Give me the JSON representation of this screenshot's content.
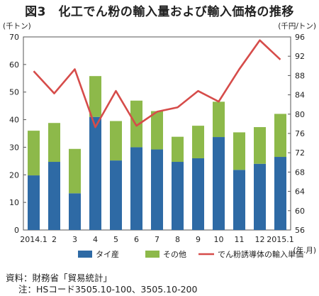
{
  "title": "図3　化工でん粉の輸入量および輸入価格の推移",
  "notes": {
    "source": "資料：財務省「貿易統計」",
    "note": "注：HSコード3505.10-100、3505.10-200"
  },
  "chart_data": {
    "type": "bar",
    "stacked": true,
    "categories": [
      "2014.1",
      "2",
      "3",
      "4",
      "5",
      "6",
      "7",
      "8",
      "9",
      "10",
      "11",
      "12",
      "2015.1"
    ],
    "xlabel": "(年.月)",
    "ylabel_left": "(千トン)",
    "ylabel_right": "(千円/トン)",
    "ylim_left": [
      0,
      70
    ],
    "yticks_left": [
      0,
      10,
      20,
      30,
      40,
      50,
      60,
      70
    ],
    "ylim_right": [
      56,
      96
    ],
    "yticks_right": [
      56,
      60,
      64,
      68,
      72,
      76,
      80,
      84,
      88,
      92,
      96
    ],
    "grid": false,
    "legend_position": "bottom",
    "series": [
      {
        "name": "タイ産",
        "color": "#2e6aa5",
        "axis": "left",
        "values": [
          19.8,
          24.7,
          13.3,
          41.0,
          25.2,
          30.0,
          29.2,
          24.7,
          26.0,
          33.7,
          21.8,
          24.0,
          26.5
        ]
      },
      {
        "name": "その他",
        "color": "#8db94a",
        "axis": "left",
        "values": [
          16.2,
          14.1,
          16.1,
          14.8,
          14.3,
          16.9,
          13.9,
          9.1,
          11.8,
          12.8,
          13.6,
          13.3,
          15.6
        ]
      },
      {
        "name": "でん粉誘導体の輸入単価",
        "color": "#d64c4a",
        "axis": "right",
        "kind": "line",
        "values": [
          88.9,
          84.3,
          89.3,
          77.3,
          84.8,
          77.6,
          80.5,
          81.4,
          84.8,
          82.6,
          89.3,
          95.3,
          91.3
        ]
      }
    ]
  }
}
